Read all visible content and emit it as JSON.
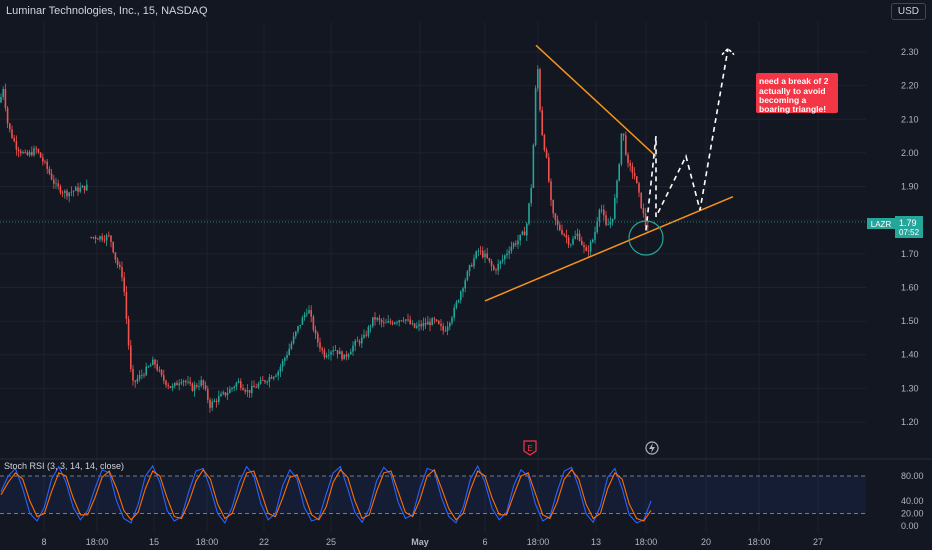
{
  "header": {
    "symbol_title": "Luminar Technologies, Inc., 15, NASDAQ",
    "currency_button": "USD"
  },
  "price_badge": {
    "ticker": "LAZR",
    "price": "1.79",
    "countdown": "07:52"
  },
  "annotation_text": [
    "need a break of 2",
    "actually to avoid",
    "becoming a",
    "boaring triangle!"
  ],
  "events": {
    "earnings_icon_label": "E"
  },
  "indicator": {
    "label": "Stoch RSI (3, 3, 14, 14, close)"
  },
  "colors": {
    "background": "#131722",
    "grid": "#1e222d",
    "candle_up": "#26a69a",
    "candle_down": "#ef5350",
    "trendline": "#f7931a",
    "annotation_bg": "#f23645",
    "rsi_k": "#2962ff",
    "rsi_d": "#ff6d00",
    "rsi_band": "#2962ff"
  },
  "chart_data": [
    {
      "type": "candlestick",
      "title": "Luminar Technologies, Inc., 15, NASDAQ",
      "y_ticks": [
        "2.30",
        "2.20",
        "2.10",
        "2.00",
        "1.90",
        "1.80",
        "1.70",
        "1.60",
        "1.50",
        "1.40",
        "1.30",
        "1.20"
      ],
      "x_ticks": [
        "8",
        "18:00",
        "15",
        "18:00",
        "22",
        "25",
        "May",
        "6",
        "18:00",
        "13",
        "18:00",
        "20",
        "18:00",
        "27"
      ],
      "ylim": [
        1.12,
        2.36
      ],
      "current_price": 1.79,
      "price_path": [
        [
          0,
          2.15
        ],
        [
          3,
          2.2
        ],
        [
          8,
          2.08
        ],
        [
          16,
          2.02
        ],
        [
          26,
          1.99
        ],
        [
          36,
          2.01
        ],
        [
          46,
          1.96
        ],
        [
          56,
          1.9
        ],
        [
          66,
          1.88
        ],
        [
          76,
          1.89
        ],
        [
          88,
          1.9
        ],
        [
          90,
          1.75
        ],
        [
          100,
          1.75
        ],
        [
          110,
          1.75
        ],
        [
          116,
          1.68
        ],
        [
          123,
          1.63
        ],
        [
          128,
          1.45
        ],
        [
          132,
          1.31
        ],
        [
          138,
          1.33
        ],
        [
          148,
          1.36
        ],
        [
          154,
          1.38
        ],
        [
          162,
          1.33
        ],
        [
          172,
          1.3
        ],
        [
          182,
          1.33
        ],
        [
          192,
          1.3
        ],
        [
          202,
          1.32
        ],
        [
          210,
          1.25
        ],
        [
          218,
          1.27
        ],
        [
          228,
          1.29
        ],
        [
          238,
          1.32
        ],
        [
          248,
          1.29
        ],
        [
          258,
          1.31
        ],
        [
          268,
          1.33
        ],
        [
          278,
          1.35
        ],
        [
          288,
          1.41
        ],
        [
          298,
          1.48
        ],
        [
          308,
          1.54
        ],
        [
          316,
          1.45
        ],
        [
          324,
          1.4
        ],
        [
          334,
          1.42
        ],
        [
          344,
          1.39
        ],
        [
          354,
          1.43
        ],
        [
          364,
          1.45
        ],
        [
          374,
          1.51
        ],
        [
          384,
          1.49
        ],
        [
          394,
          1.5
        ],
        [
          404,
          1.51
        ],
        [
          414,
          1.48
        ],
        [
          424,
          1.49
        ],
        [
          434,
          1.5
        ],
        [
          444,
          1.47
        ],
        [
          454,
          1.53
        ],
        [
          462,
          1.6
        ],
        [
          470,
          1.66
        ],
        [
          478,
          1.71
        ],
        [
          486,
          1.69
        ],
        [
          494,
          1.65
        ],
        [
          502,
          1.68
        ],
        [
          510,
          1.72
        ],
        [
          518,
          1.74
        ],
        [
          526,
          1.77
        ],
        [
          532,
          1.92
        ],
        [
          537,
          2.29
        ],
        [
          541,
          2.08
        ],
        [
          547,
          1.97
        ],
        [
          552,
          1.82
        ],
        [
          558,
          1.78
        ],
        [
          564,
          1.76
        ],
        [
          570,
          1.73
        ],
        [
          578,
          1.76
        ],
        [
          586,
          1.7
        ],
        [
          594,
          1.75
        ],
        [
          600,
          1.85
        ],
        [
          606,
          1.78
        ],
        [
          612,
          1.8
        ],
        [
          618,
          1.93
        ],
        [
          622,
          2.08
        ],
        [
          628,
          1.96
        ],
        [
          634,
          1.94
        ],
        [
          640,
          1.86
        ],
        [
          646,
          1.78
        ],
        [
          650,
          1.79
        ]
      ],
      "trendlines": [
        {
          "from": [
            "2024-05-08",
            2.32
          ],
          "to": [
            "2024-05-15",
            1.99
          ]
        },
        {
          "from": [
            "2024-05-06",
            1.56
          ],
          "to": [
            "2024-05-19",
            1.87
          ]
        }
      ],
      "projection_path": [
        [
          1.77,
          "2024-05-14"
        ],
        [
          2.05,
          "2024-05-15"
        ],
        [
          1.81,
          "2024-05-15"
        ],
        [
          1.99,
          "2024-05-16"
        ],
        [
          1.83,
          "2024-05-17"
        ],
        [
          2.31,
          "2024-05-18"
        ]
      ],
      "annotation": "need a break of 2 actually to avoid becoming a boaring triangle!"
    },
    {
      "type": "line",
      "title": "Stoch RSI (3, 3, 14, 14, close)",
      "y_ticks": [
        "80.00",
        "40.00",
        "20.00",
        "0.00"
      ],
      "ylim": [
        0,
        100
      ],
      "bands": [
        20,
        80
      ],
      "series": [
        {
          "name": "K",
          "values": [
            55,
            80,
            92,
            60,
            20,
            8,
            30,
            75,
            95,
            70,
            30,
            10,
            25,
            60,
            90,
            85,
            40,
            12,
            5,
            35,
            80,
            96,
            70,
            25,
            8,
            15,
            55,
            88,
            92,
            60,
            20,
            5,
            30,
            70,
            95,
            80,
            35,
            10,
            20,
            65,
            90,
            75,
            30,
            8,
            12,
            50,
            85,
            95,
            60,
            22,
            6,
            28,
            72,
            94,
            82,
            38,
            12,
            18,
            60,
            92,
            88,
            45,
            15,
            5,
            30,
            75,
            96,
            70,
            28,
            10,
            22,
            65,
            90,
            80,
            35,
            8,
            15,
            55,
            88,
            94,
            62,
            20,
            6,
            32,
            78,
            92,
            60,
            18,
            5,
            10,
            40
          ]
        },
        {
          "name": "D",
          "values": [
            50,
            70,
            85,
            75,
            40,
            15,
            20,
            55,
            85,
            80,
            45,
            18,
            18,
            45,
            78,
            88,
            60,
            25,
            10,
            22,
            60,
            88,
            80,
            45,
            15,
            12,
            38,
            72,
            90,
            75,
            35,
            12,
            20,
            52,
            85,
            88,
            55,
            20,
            15,
            45,
            78,
            82,
            50,
            18,
            10,
            30,
            70,
            90,
            78,
            40,
            12,
            18,
            55,
            85,
            88,
            55,
            22,
            15,
            42,
            80,
            90,
            60,
            28,
            10,
            20,
            58,
            88,
            80,
            45,
            18,
            18,
            50,
            80,
            85,
            52,
            18,
            12,
            38,
            75,
            90,
            75,
            35,
            12,
            20,
            60,
            85,
            75,
            35,
            12,
            8,
            25
          ]
        }
      ]
    }
  ]
}
